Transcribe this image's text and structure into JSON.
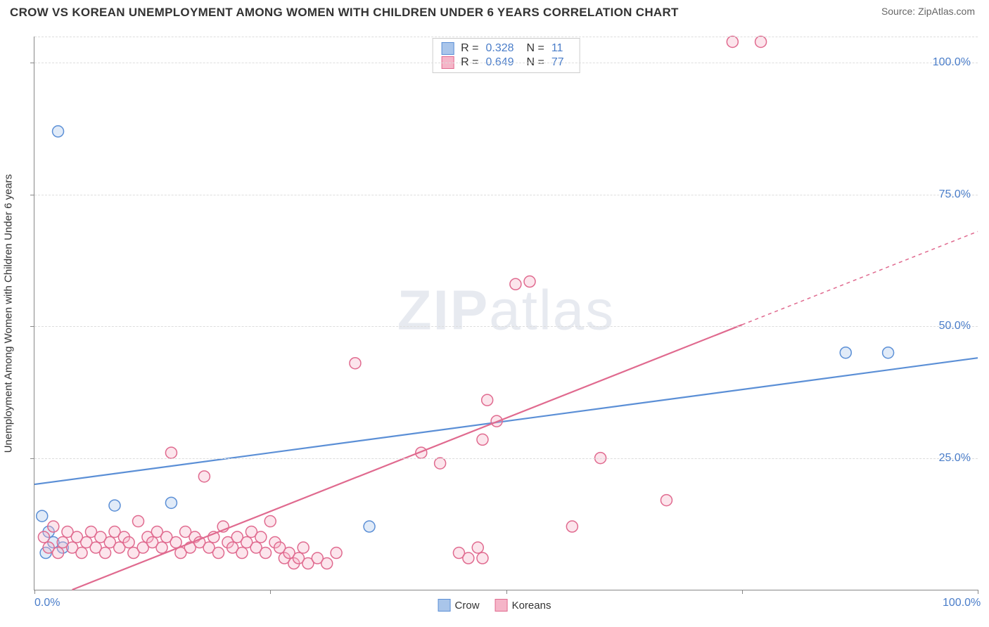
{
  "title": "CROW VS KOREAN UNEMPLOYMENT AMONG WOMEN WITH CHILDREN UNDER 6 YEARS CORRELATION CHART",
  "source_label": "Source: ",
  "source_name": "ZipAtlas.com",
  "y_axis_title": "Unemployment Among Women with Children Under 6 years",
  "watermark_bold": "ZIP",
  "watermark_rest": "atlas",
  "chart": {
    "type": "scatter",
    "xlim": [
      0,
      100
    ],
    "ylim": [
      0,
      105
    ],
    "x_ticks": [
      0,
      25,
      50,
      75,
      100
    ],
    "y_gridlines": [
      25,
      50,
      75,
      100,
      105
    ],
    "y_tick_labels": [
      {
        "v": 25,
        "label": "25.0%"
      },
      {
        "v": 50,
        "label": "50.0%"
      },
      {
        "v": 75,
        "label": "75.0%"
      },
      {
        "v": 100,
        "label": "100.0%"
      }
    ],
    "x_tick_labels": [
      {
        "v": 0,
        "label": "0.0%"
      },
      {
        "v": 100,
        "label": "100.0%"
      }
    ],
    "background_color": "#ffffff",
    "grid_color": "#dddddd",
    "axis_color": "#888888",
    "marker_radius": 8,
    "marker_stroke_width": 1.5,
    "marker_fill_opacity": 0.35,
    "line_width": 2.2
  },
  "series": [
    {
      "name": "Crow",
      "color_stroke": "#5b8fd6",
      "color_fill": "#a9c5ea",
      "R_label": "R =",
      "R": "0.328",
      "N_label": "N =",
      "N": "11",
      "regression": {
        "x1": 0,
        "y1": 20,
        "x2": 100,
        "y2": 44,
        "dash_from_x": null
      },
      "points": [
        {
          "x": 2.5,
          "y": 87
        },
        {
          "x": 0.8,
          "y": 14
        },
        {
          "x": 1.5,
          "y": 11
        },
        {
          "x": 2.0,
          "y": 9
        },
        {
          "x": 8.5,
          "y": 16
        },
        {
          "x": 14.5,
          "y": 16.5
        },
        {
          "x": 35.5,
          "y": 12
        },
        {
          "x": 86,
          "y": 45
        },
        {
          "x": 90.5,
          "y": 45
        },
        {
          "x": 1.2,
          "y": 7
        },
        {
          "x": 3.0,
          "y": 8
        }
      ]
    },
    {
      "name": "Koreans",
      "color_stroke": "#e06a8f",
      "color_fill": "#f5b5c8",
      "R_label": "R =",
      "R": "0.649",
      "N_label": "N =",
      "N": "77",
      "regression": {
        "x1": 4,
        "y1": 0,
        "x2": 100,
        "y2": 68,
        "dash_from_x": 75
      },
      "points": [
        {
          "x": 74,
          "y": 104
        },
        {
          "x": 77,
          "y": 104
        },
        {
          "x": 51,
          "y": 58
        },
        {
          "x": 52.5,
          "y": 58.5
        },
        {
          "x": 34,
          "y": 43
        },
        {
          "x": 48,
          "y": 36
        },
        {
          "x": 49,
          "y": 32
        },
        {
          "x": 47.5,
          "y": 28.5
        },
        {
          "x": 41,
          "y": 26
        },
        {
          "x": 43,
          "y": 24
        },
        {
          "x": 60,
          "y": 25
        },
        {
          "x": 57,
          "y": 12
        },
        {
          "x": 67,
          "y": 17
        },
        {
          "x": 14.5,
          "y": 26
        },
        {
          "x": 18,
          "y": 21.5
        },
        {
          "x": 1,
          "y": 10
        },
        {
          "x": 1.5,
          "y": 8
        },
        {
          "x": 2,
          "y": 12
        },
        {
          "x": 2.5,
          "y": 7
        },
        {
          "x": 3,
          "y": 9
        },
        {
          "x": 3.5,
          "y": 11
        },
        {
          "x": 4,
          "y": 8
        },
        {
          "x": 4.5,
          "y": 10
        },
        {
          "x": 5,
          "y": 7
        },
        {
          "x": 5.5,
          "y": 9
        },
        {
          "x": 6,
          "y": 11
        },
        {
          "x": 6.5,
          "y": 8
        },
        {
          "x": 7,
          "y": 10
        },
        {
          "x": 7.5,
          "y": 7
        },
        {
          "x": 8,
          "y": 9
        },
        {
          "x": 8.5,
          "y": 11
        },
        {
          "x": 9,
          "y": 8
        },
        {
          "x": 9.5,
          "y": 10
        },
        {
          "x": 10,
          "y": 9
        },
        {
          "x": 10.5,
          "y": 7
        },
        {
          "x": 11,
          "y": 13
        },
        {
          "x": 11.5,
          "y": 8
        },
        {
          "x": 12,
          "y": 10
        },
        {
          "x": 12.5,
          "y": 9
        },
        {
          "x": 13,
          "y": 11
        },
        {
          "x": 13.5,
          "y": 8
        },
        {
          "x": 14,
          "y": 10
        },
        {
          "x": 15,
          "y": 9
        },
        {
          "x": 15.5,
          "y": 7
        },
        {
          "x": 16,
          "y": 11
        },
        {
          "x": 16.5,
          "y": 8
        },
        {
          "x": 17,
          "y": 10
        },
        {
          "x": 17.5,
          "y": 9
        },
        {
          "x": 18.5,
          "y": 8
        },
        {
          "x": 19,
          "y": 10
        },
        {
          "x": 19.5,
          "y": 7
        },
        {
          "x": 20,
          "y": 12
        },
        {
          "x": 20.5,
          "y": 9
        },
        {
          "x": 21,
          "y": 8
        },
        {
          "x": 21.5,
          "y": 10
        },
        {
          "x": 22,
          "y": 7
        },
        {
          "x": 22.5,
          "y": 9
        },
        {
          "x": 23,
          "y": 11
        },
        {
          "x": 23.5,
          "y": 8
        },
        {
          "x": 24,
          "y": 10
        },
        {
          "x": 24.5,
          "y": 7
        },
        {
          "x": 25,
          "y": 13
        },
        {
          "x": 25.5,
          "y": 9
        },
        {
          "x": 26,
          "y": 8
        },
        {
          "x": 26.5,
          "y": 6
        },
        {
          "x": 27,
          "y": 7
        },
        {
          "x": 27.5,
          "y": 5
        },
        {
          "x": 28,
          "y": 6
        },
        {
          "x": 28.5,
          "y": 8
        },
        {
          "x": 29,
          "y": 5
        },
        {
          "x": 30,
          "y": 6
        },
        {
          "x": 31,
          "y": 5
        },
        {
          "x": 32,
          "y": 7
        },
        {
          "x": 45,
          "y": 7
        },
        {
          "x": 46,
          "y": 6
        },
        {
          "x": 47,
          "y": 8
        },
        {
          "x": 47.5,
          "y": 6
        }
      ]
    }
  ],
  "bottom_legend": [
    {
      "label": "Crow",
      "stroke": "#5b8fd6",
      "fill": "#a9c5ea"
    },
    {
      "label": "Koreans",
      "stroke": "#e06a8f",
      "fill": "#f5b5c8"
    }
  ]
}
